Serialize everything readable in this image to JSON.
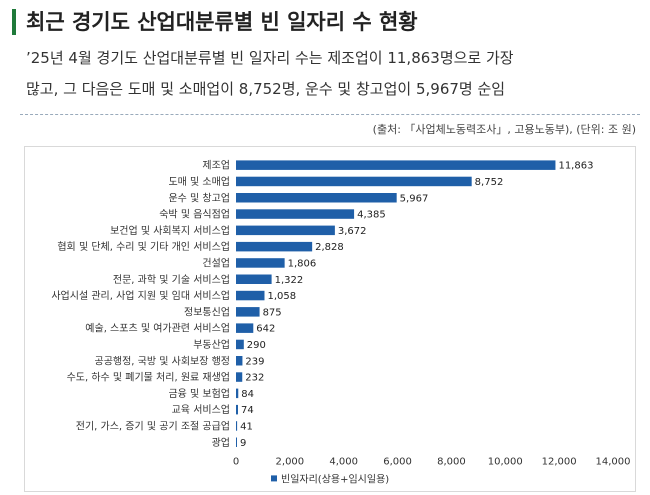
{
  "header": {
    "title": "최근 경기도 산업대분류별 빈 일자리 수 현황",
    "summary_line1": "’25년 4월 경기도 산업대분류별 빈 일자리 수는 제조업이 11,863명으로 가장",
    "summary_line2": "많고, 그 다음은 도매 및 소매업이 8,752명, 운수 및 창고업이 5,967명 순임",
    "source": "(출처: 「사업체노동력조사」, 고용노동부), (단위: 조 원)"
  },
  "colors": {
    "accent": "#1f7a3a",
    "bar": "#1f5fa8"
  },
  "chart_data": {
    "type": "bar",
    "orientation": "horizontal",
    "categories": [
      "제조업",
      "도매 및 소매업",
      "운수 및 창고업",
      "숙박 및 음식점업",
      "보건업 및 사회복지 서비스업",
      "협회 및 단체, 수리 및 기타 개인 서비스업",
      "건설업",
      "전문, 과학 및 기술 서비스업",
      "사업시설 관리, 사업 지원 및 임대 서비스업",
      "정보통신업",
      "예술, 스포츠 및 여가관련 서비스업",
      "부동산업",
      "공공행정, 국방 및 사회보장 행정",
      "수도, 하수 및 폐기물 처리, 원료 재생업",
      "금융 및 보험업",
      "교육 서비스업",
      "전기, 가스, 증기 및 공기 조절 공급업",
      "광업"
    ],
    "series": [
      {
        "name": "빈일자리(상용+임시일용)",
        "values": [
          11863,
          8752,
          5967,
          4385,
          3672,
          2828,
          1806,
          1322,
          1058,
          875,
          642,
          290,
          239,
          232,
          84,
          74,
          41,
          9
        ],
        "labels": [
          "11,863",
          "8,752",
          "5,967",
          "4,385",
          "3,672",
          "2,828",
          "1,806",
          "1,322",
          "1,058",
          "875",
          "642",
          "290",
          "239",
          "232",
          "84",
          "74",
          "41",
          "9"
        ]
      }
    ],
    "xlim": [
      0,
      14000
    ],
    "xticks": [
      0,
      2000,
      4000,
      6000,
      8000,
      10000,
      12000,
      14000
    ],
    "xtick_labels": [
      "0",
      "2,000",
      "4,000",
      "6,000",
      "8,000",
      "10,000",
      "12,000",
      "14,000"
    ],
    "grid": false,
    "legend_position": "bottom-center"
  }
}
